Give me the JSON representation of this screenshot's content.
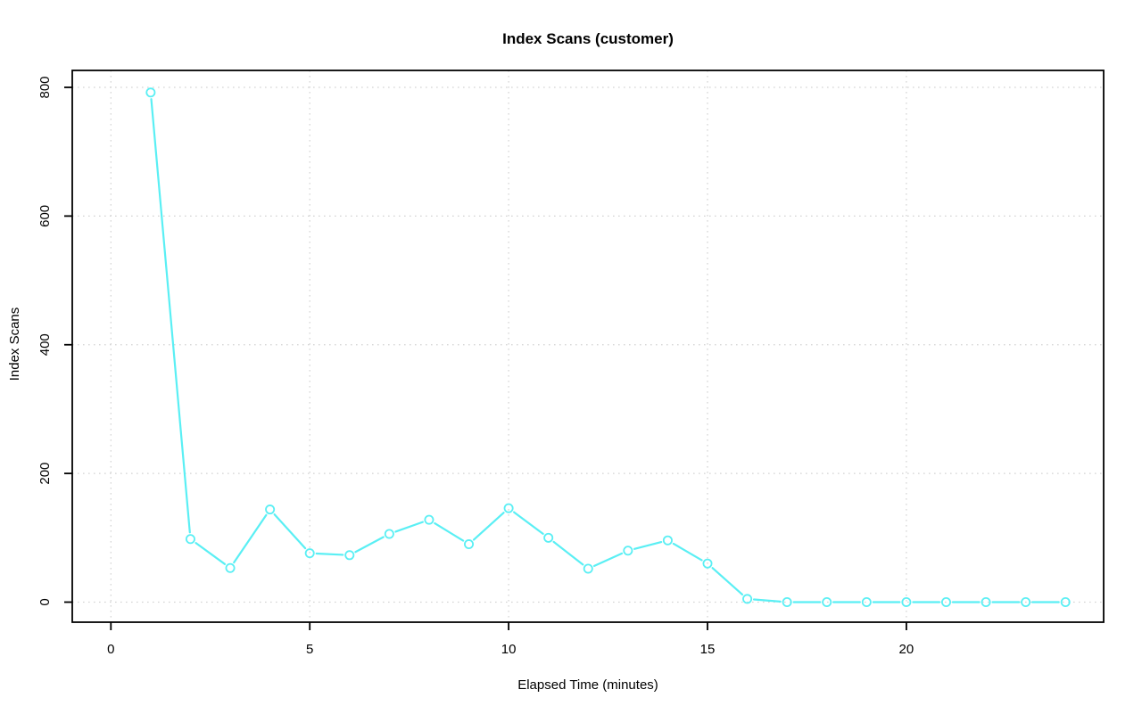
{
  "chart_data": {
    "type": "line",
    "title": "Index Scans (customer)",
    "xlabel": "Elapsed Time (minutes)",
    "ylabel": "Index Scans",
    "series": [
      {
        "name": "customer-index-scans",
        "x": [
          1,
          2,
          3,
          4,
          5,
          6,
          7,
          8,
          9,
          10,
          11,
          12,
          13,
          14,
          15,
          16,
          17,
          18,
          19,
          20,
          21,
          22,
          23,
          24
        ],
        "values": [
          792,
          98,
          53,
          144,
          76,
          73,
          106,
          128,
          90,
          146,
          100,
          52,
          80,
          96,
          60,
          5,
          0,
          0,
          0,
          0,
          0,
          0,
          0,
          0
        ]
      }
    ],
    "x_ticks": [
      0,
      5,
      10,
      15,
      20
    ],
    "y_ticks": [
      0,
      200,
      400,
      600,
      800
    ],
    "xlim": [
      0,
      24
    ],
    "ylim": [
      0,
      800
    ],
    "grid": "dotted",
    "legend": "none",
    "marker": "open-circle",
    "line_style": "points-with-gaps",
    "colors": {
      "line": "#5AEFF4",
      "grid": "#D3D3D3",
      "axis": "#000000",
      "background": "#FFFFFF"
    }
  }
}
